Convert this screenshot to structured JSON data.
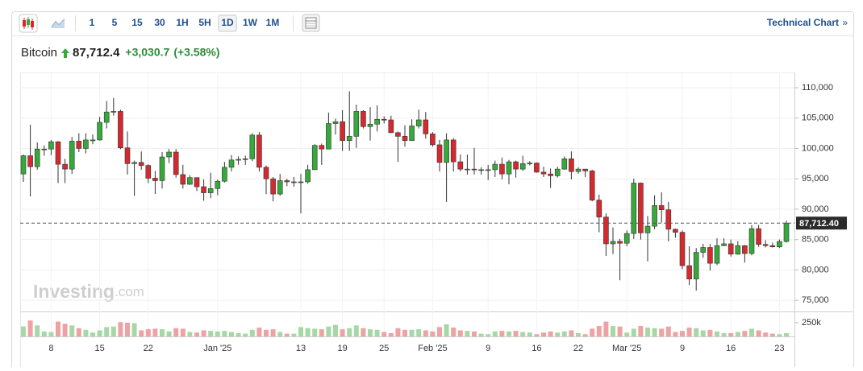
{
  "toolbar": {
    "intervals": [
      "1",
      "5",
      "15",
      "30",
      "1H",
      "5H",
      "1D",
      "1W",
      "1M"
    ],
    "selected": "1D",
    "link": "Technical Chart",
    "link_arrow": "»"
  },
  "header": {
    "name": "Bitcoin",
    "price": "87,712.4",
    "change": "+3,030.7",
    "change_pct": "(+3.58%)"
  },
  "watermark": {
    "brand": "Investing",
    "suffix": ".com"
  },
  "chart_data": {
    "type": "candlestick",
    "categories": [
      null,
      null,
      null,
      null,
      "8",
      null,
      null,
      null,
      null,
      null,
      null,
      "15",
      null,
      null,
      null,
      null,
      null,
      null,
      "22",
      null,
      null,
      null,
      null,
      null,
      null,
      null,
      null,
      null,
      "Jan '25",
      null,
      null,
      null,
      null,
      null,
      null,
      null,
      null,
      null,
      null,
      null,
      "13",
      null,
      null,
      null,
      null,
      null,
      "19",
      null,
      null,
      null,
      null,
      null,
      "25",
      null,
      null,
      null,
      null,
      null,
      null,
      "Feb '25",
      null,
      null,
      null,
      null,
      null,
      null,
      null,
      "9",
      null,
      null,
      null,
      null,
      null,
      null,
      "16",
      null,
      null,
      null,
      null,
      null,
      "22",
      null,
      null,
      null,
      null,
      null,
      null,
      "Mar '25",
      null,
      null,
      null,
      null,
      null,
      null,
      null,
      "9",
      null,
      null,
      null,
      null,
      null,
      null,
      "16",
      null,
      null,
      null,
      null,
      null,
      null,
      "23",
      null
    ],
    "open": [
      95800,
      98800,
      97000,
      99900,
      99900,
      101100,
      97400,
      96600,
      101200,
      100000,
      101400,
      101400,
      104300,
      106000,
      106100,
      100100,
      97500,
      97700,
      97200,
      95100,
      94700,
      98600,
      99400,
      95700,
      94100,
      95200,
      93700,
      92700,
      93400,
      94600,
      96900,
      98100,
      98200,
      98300,
      102200,
      96900,
      95000,
      92500,
      94700,
      94500,
      94500,
      94500,
      96500,
      100500,
      99900,
      104100,
      104400,
      101300,
      102000,
      106100,
      103600,
      104000,
      104800,
      104700,
      102600,
      102000,
      101300,
      103700,
      104700,
      102400,
      100600,
      97700,
      101400,
      97800,
      96600,
      96600,
      96500,
      96500,
      96500,
      97400,
      95800,
      97800,
      96600,
      97500,
      97600,
      96100,
      95800,
      95500,
      96600,
      98300,
      96200,
      96600,
      96300,
      91500,
      88700,
      84300,
      84700,
      84400,
      86000,
      94300,
      86100,
      87200,
      90600,
      89900,
      86700,
      86200,
      80700,
      78500,
      82900,
      83700,
      81100,
      84000,
      84300,
      82600,
      84000,
      82700,
      86800,
      84200,
      84000,
      83800,
      84681.7
    ],
    "high": [
      99000,
      103900,
      101000,
      100500,
      101400,
      101200,
      98300,
      101900,
      102500,
      102500,
      102300,
      105200,
      107800,
      108300,
      106400,
      102800,
      98000,
      99500,
      97400,
      96300,
      99400,
      99900,
      99900,
      97300,
      95600,
      95200,
      94900,
      96000,
      94900,
      97800,
      98900,
      98700,
      98800,
      102500,
      102700,
      97200,
      95300,
      95800,
      95000,
      95300,
      95800,
      97300,
      100700,
      100800,
      105900,
      104900,
      106300,
      109400,
      107200,
      106300,
      106800,
      107100,
      105300,
      105400,
      102800,
      103800,
      104800,
      106400,
      106000,
      102700,
      101400,
      102500,
      101700,
      99000,
      99000,
      100100,
      96900,
      97300,
      98000,
      98500,
      98100,
      98000,
      98800,
      97900,
      97700,
      97000,
      96700,
      97000,
      98700,
      99500,
      96900,
      96500,
      96500,
      92400,
      89300,
      87000,
      85100,
      86500,
      95000,
      94400,
      88900,
      92300,
      92800,
      91200,
      86800,
      86500,
      83900,
      83600,
      84300,
      84300,
      85200,
      85200,
      85000,
      84700,
      84100,
      87400,
      87400,
      84900,
      84500,
      85000,
      88100
    ],
    "low": [
      94500,
      92100,
      96500,
      98800,
      98900,
      94300,
      94300,
      95800,
      99400,
      99200,
      100700,
      101300,
      103300,
      105400,
      99900,
      95700,
      92200,
      96500,
      94300,
      92500,
      93400,
      97600,
      95200,
      93400,
      94000,
      93000,
      91400,
      91800,
      92300,
      94400,
      96200,
      97300,
      97300,
      97900,
      96200,
      92500,
      91300,
      92200,
      93800,
      93700,
      89300,
      94200,
      96500,
      97300,
      99900,
      102300,
      99600,
      99600,
      100100,
      103300,
      101300,
      102800,
      104100,
      102500,
      97800,
      100300,
      101300,
      103300,
      101600,
      100300,
      96200,
      91200,
      96200,
      96200,
      95700,
      95700,
      95700,
      94800,
      95300,
      94900,
      94100,
      95200,
      96300,
      97200,
      96000,
      95300,
      93500,
      95200,
      96500,
      94900,
      95800,
      95300,
      91300,
      86200,
      82300,
      82600,
      78300,
      83900,
      85100,
      85000,
      81400,
      86700,
      87800,
      84700,
      85300,
      80100,
      77500,
      76600,
      82000,
      79900,
      80800,
      83900,
      82200,
      82500,
      81200,
      82400,
      83800,
      83700,
      83700,
      83600,
      84500
    ],
    "close": [
      98800,
      97000,
      99900,
      99900,
      101100,
      97400,
      96600,
      101200,
      100000,
      101400,
      101400,
      104300,
      106000,
      106100,
      100100,
      97500,
      97700,
      97200,
      95100,
      94700,
      98600,
      99400,
      95700,
      94100,
      95200,
      93700,
      92700,
      93400,
      94600,
      96900,
      98100,
      98200,
      98300,
      102200,
      96900,
      95000,
      92500,
      94700,
      94500,
      94500,
      94500,
      96500,
      100500,
      99900,
      104100,
      104400,
      101300,
      102000,
      106100,
      103600,
      104000,
      104800,
      104700,
      102600,
      102000,
      101300,
      103700,
      104700,
      102400,
      100600,
      97700,
      101400,
      97800,
      96600,
      96600,
      96500,
      96500,
      96500,
      97400,
      95800,
      97800,
      96600,
      97500,
      97600,
      96100,
      95800,
      95500,
      96600,
      98300,
      96200,
      96600,
      96300,
      91500,
      88700,
      84300,
      84700,
      84400,
      86000,
      94300,
      86100,
      87200,
      90600,
      89900,
      86700,
      86200,
      80700,
      78500,
      82900,
      83700,
      81100,
      84000,
      84300,
      82600,
      84000,
      82700,
      86800,
      84200,
      84000,
      83800,
      84681.7,
      87712.4
    ],
    "up_color": "#37a83b",
    "down_color": "#d42a2f",
    "ylim": [
      73300,
      112250
    ],
    "yticks": [
      {
        "value": 75000,
        "label": "75,000"
      },
      {
        "value": 80000,
        "label": "80,000"
      },
      {
        "value": 85000,
        "label": "85,000"
      },
      {
        "value": 90000,
        "label": "90,000"
      },
      {
        "value": 95000,
        "label": "95,000"
      },
      {
        "value": 100000,
        "label": "100,000"
      },
      {
        "value": 105000,
        "label": "105,000"
      },
      {
        "value": 110000,
        "label": "110,000"
      }
    ],
    "grid": true,
    "last_price": {
      "value": 87712.4,
      "label": "87,712.40"
    },
    "volume": {
      "values": [
        180000,
        290000,
        200000,
        90000,
        80000,
        270000,
        230000,
        200000,
        150000,
        120000,
        70000,
        110000,
        170000,
        180000,
        260000,
        250000,
        240000,
        110000,
        130000,
        140000,
        130000,
        90000,
        150000,
        140000,
        80000,
        70000,
        110000,
        100000,
        90000,
        100000,
        80000,
        60000,
        50000,
        120000,
        160000,
        120000,
        130000,
        80000,
        50000,
        50000,
        170000,
        150000,
        140000,
        130000,
        180000,
        210000,
        130000,
        150000,
        200000,
        150000,
        130000,
        120000,
        80000,
        60000,
        150000,
        120000,
        120000,
        130000,
        110000,
        90000,
        170000,
        220000,
        160000,
        110000,
        100000,
        90000,
        50000,
        40000,
        90000,
        100000,
        90000,
        100000,
        80000,
        70000,
        40000,
        70000,
        90000,
        70000,
        90000,
        110000,
        60000,
        40000,
        140000,
        190000,
        270000,
        190000,
        180000,
        70000,
        140000,
        190000,
        160000,
        150000,
        140000,
        180000,
        80000,
        100000,
        160000,
        150000,
        110000,
        120000,
        90000,
        60000,
        60000,
        80000,
        100000,
        140000,
        110000,
        70000,
        50000,
        40000,
        60000
      ],
      "ylim": [
        0,
        440000
      ],
      "yticks": [
        {
          "value": 250000,
          "label": "250k"
        }
      ],
      "up_color": "#a6d8a6",
      "down_color": "#eea2a4"
    }
  }
}
